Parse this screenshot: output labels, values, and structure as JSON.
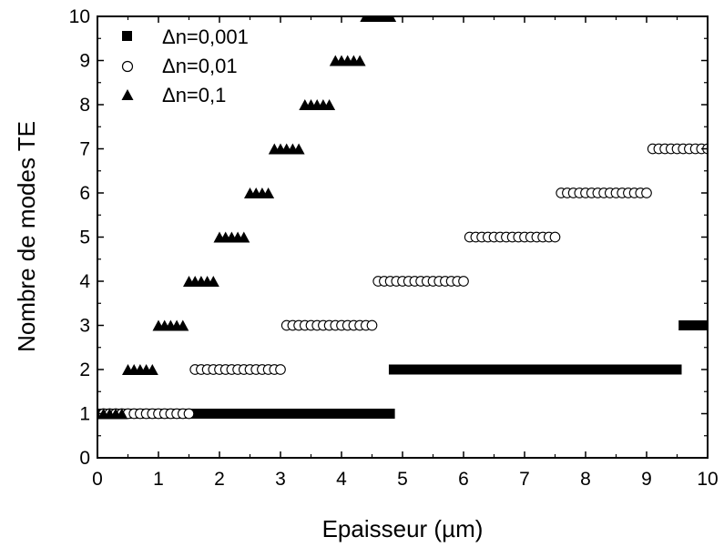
{
  "chart_data": {
    "type": "scatter",
    "title": "",
    "xlabel": "Epaisseur (µm)",
    "ylabel": "Nombre de modes TE",
    "xlim": [
      0,
      10
    ],
    "ylim": [
      0,
      10
    ],
    "x_ticks": [
      "0",
      "1",
      "2",
      "3",
      "4",
      "5",
      "6",
      "7",
      "8",
      "9",
      "10"
    ],
    "y_ticks": [
      "0",
      "1",
      "2",
      "3",
      "4",
      "5",
      "6",
      "7",
      "8",
      "9",
      "10"
    ],
    "grid": false,
    "legend_position": "top-left",
    "series": [
      {
        "name": "Δn=0,001",
        "marker": "square-filled",
        "color": "#000000",
        "segments": [
          {
            "x_start": 0.05,
            "x_end": 4.8,
            "y": 1,
            "step": 0.05
          },
          {
            "x_start": 4.85,
            "x_end": 9.5,
            "y": 2,
            "step": 0.05
          },
          {
            "x_start": 9.6,
            "x_end": 9.95,
            "y": 3,
            "step": 0.05
          }
        ]
      },
      {
        "name": "Δn=0,01",
        "marker": "circle-open",
        "color": "#000000",
        "segments": [
          {
            "x_start": 0.1,
            "x_end": 1.5,
            "y": 1,
            "step": 0.1
          },
          {
            "x_start": 1.6,
            "x_end": 3.0,
            "y": 2,
            "step": 0.1
          },
          {
            "x_start": 3.1,
            "x_end": 4.5,
            "y": 3,
            "step": 0.1
          },
          {
            "x_start": 4.6,
            "x_end": 6.0,
            "y": 4,
            "step": 0.1
          },
          {
            "x_start": 6.1,
            "x_end": 7.5,
            "y": 5,
            "step": 0.1
          },
          {
            "x_start": 7.6,
            "x_end": 9.0,
            "y": 6,
            "step": 0.1
          },
          {
            "x_start": 9.1,
            "x_end": 10.0,
            "y": 7,
            "step": 0.1
          }
        ]
      },
      {
        "name": "Δn=0,1",
        "marker": "triangle-filled",
        "color": "#000000",
        "segments": [
          {
            "x_start": 0.1,
            "x_end": 0.4,
            "y": 1,
            "step": 0.1
          },
          {
            "x_start": 0.5,
            "x_end": 0.9,
            "y": 2,
            "step": 0.1
          },
          {
            "x_start": 1.0,
            "x_end": 1.4,
            "y": 3,
            "step": 0.1
          },
          {
            "x_start": 1.5,
            "x_end": 1.9,
            "y": 4,
            "step": 0.1
          },
          {
            "x_start": 2.0,
            "x_end": 2.4,
            "y": 5,
            "step": 0.1
          },
          {
            "x_start": 2.5,
            "x_end": 2.8,
            "y": 6,
            "step": 0.1
          },
          {
            "x_start": 2.9,
            "x_end": 3.3,
            "y": 7,
            "step": 0.1
          },
          {
            "x_start": 3.4,
            "x_end": 3.8,
            "y": 8,
            "step": 0.1
          },
          {
            "x_start": 3.9,
            "x_end": 4.3,
            "y": 9,
            "step": 0.1
          },
          {
            "x_start": 4.4,
            "x_end": 4.8,
            "y": 10,
            "step": 0.1
          }
        ]
      }
    ]
  }
}
